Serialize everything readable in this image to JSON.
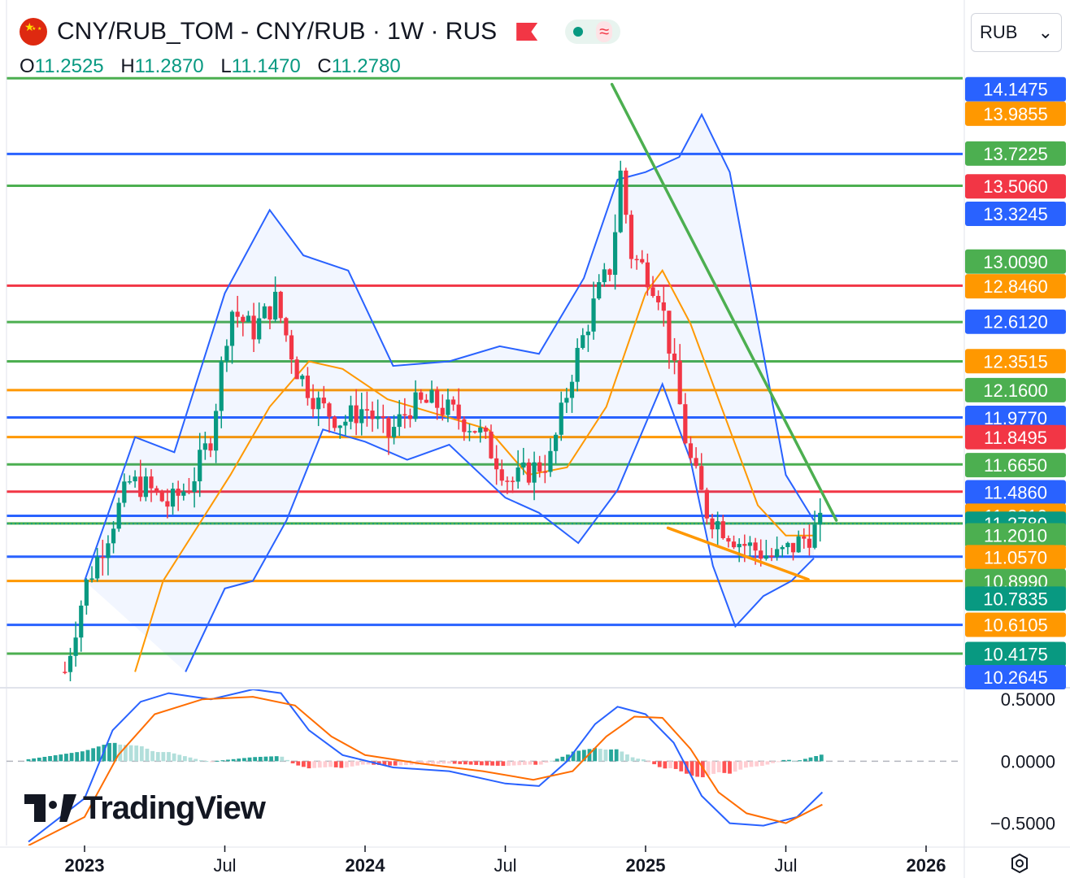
{
  "header": {
    "title": "CNY/RUB_TOM - CNY/RUB · 1W · RUS",
    "ohlc": [
      {
        "key": "O",
        "value": "11.2525"
      },
      {
        "key": "H",
        "value": "11.2870"
      },
      {
        "key": "L",
        "value": "11.1470"
      },
      {
        "key": "C",
        "value": "11.2780"
      }
    ],
    "currency": "RUB",
    "dropdown_glyph": "⌄",
    "icons": [
      "china-flag-icon",
      "flag-marker-icon",
      "status-dot-icon",
      "wave-icon",
      "settings-icon"
    ]
  },
  "branding": {
    "logo_text": "TradingView"
  },
  "chart_data": [
    {
      "type": "candlestick",
      "interval": "1W",
      "ylim": [
        10.2,
        14.35
      ],
      "x_labels": [
        {
          "label": "2023",
          "bold": true,
          "t": 2023.0
        },
        {
          "label": "Jul",
          "bold": false,
          "t": 2023.5
        },
        {
          "label": "2024",
          "bold": true,
          "t": 2024.0
        },
        {
          "label": "Jul",
          "bold": false,
          "t": 2024.5
        },
        {
          "label": "2025",
          "bold": true,
          "t": 2025.0
        },
        {
          "label": "Jul",
          "bold": false,
          "t": 2025.5
        },
        {
          "label": "2026",
          "bold": true,
          "t": 2026.0
        }
      ],
      "price_levels": [
        {
          "label": "14.1475",
          "value": 14.1475,
          "color": "#2962ff",
          "line": false
        },
        {
          "label": "13.9855",
          "value": 13.9855,
          "color": "#ff9800",
          "line": true
        },
        {
          "label": "13.7225",
          "value": 13.7225,
          "color": "#4caf50",
          "line": true
        },
        {
          "label": "13.5060",
          "value": 13.506,
          "color": "#f23645",
          "line": false
        },
        {
          "label": "13.3245",
          "value": 13.3245,
          "color": "#2962ff",
          "line": true
        },
        {
          "label": "13.0090",
          "value": 13.009,
          "color": "#4caf50",
          "line": true
        },
        {
          "label": "12.8460",
          "value": 12.846,
          "color": "#ff9800",
          "line": true
        },
        {
          "label": "12.6120",
          "value": 12.612,
          "color": "#2962ff",
          "line": true
        },
        {
          "label": "12.3515",
          "value": 12.3515,
          "color": "#ff9800",
          "line": true
        },
        {
          "label": "12.1600",
          "value": 12.16,
          "color": "#4caf50",
          "line": true
        },
        {
          "label": "11.9770",
          "value": 11.977,
          "color": "#2962ff",
          "line": true
        },
        {
          "label": "11.8495",
          "value": 11.8495,
          "color": "#f23645",
          "line": true
        },
        {
          "label": "11.6650",
          "value": 11.665,
          "color": "#4caf50",
          "line": true
        },
        {
          "label": "11.4860",
          "value": 11.486,
          "color": "#2962ff",
          "line": true
        },
        {
          "label": "11.3310",
          "value": 11.331,
          "color": "#ff9800",
          "line": true
        },
        {
          "label": "11.2780",
          "value": 11.278,
          "color": "#089981",
          "line": false
        },
        {
          "label": "11.2010",
          "value": 11.201,
          "color": "#4caf50",
          "line": true
        },
        {
          "label": "11.0570",
          "value": 11.057,
          "color": "#ff9800",
          "line": true
        },
        {
          "label": "10.8990",
          "value": 10.899,
          "color": "#4caf50",
          "line": true
        },
        {
          "label": "10.7835",
          "value": 10.7835,
          "color": "#089981",
          "line": true
        },
        {
          "label": "10.6105",
          "value": 10.6105,
          "color": "#ff9800",
          "line": true
        },
        {
          "label": "10.4175",
          "value": 10.4175,
          "color": "#089981",
          "line": true
        },
        {
          "label": "10.2645",
          "value": 10.2645,
          "color": "#2962ff",
          "line": false
        }
      ],
      "extra_lines": [
        {
          "value": 14.22,
          "color": "#4caf50"
        },
        {
          "value": 13.72,
          "color": "#2962ff"
        },
        {
          "value": 13.51,
          "color": "#4caf50"
        },
        {
          "value": 12.85,
          "color": "#f23645"
        },
        {
          "value": 12.61,
          "color": "#4caf50"
        },
        {
          "value": 12.35,
          "color": "#4caf50"
        },
        {
          "value": 12.16,
          "color": "#ff9800"
        },
        {
          "value": 11.98,
          "color": "#2962ff"
        },
        {
          "value": 11.85,
          "color": "#ff9800"
        },
        {
          "value": 11.67,
          "color": "#4caf50"
        },
        {
          "value": 11.49,
          "color": "#f23645"
        },
        {
          "value": 11.33,
          "color": "#2962ff"
        },
        {
          "value": 11.28,
          "color": "#4caf50"
        },
        {
          "value": 11.06,
          "color": "#2962ff"
        },
        {
          "value": 10.9,
          "color": "#ff9800"
        },
        {
          "value": 10.61,
          "color": "#2962ff"
        },
        {
          "value": 10.42,
          "color": "#4caf50"
        }
      ],
      "current_price": 11.278,
      "price_path": [
        [
          2022.93,
          10.3
        ],
        [
          2023.0,
          10.85
        ],
        [
          2023.08,
          11.2
        ],
        [
          2023.16,
          11.55
        ],
        [
          2023.22,
          11.52
        ],
        [
          2023.3,
          11.4
        ],
        [
          2023.38,
          11.55
        ],
        [
          2023.45,
          11.85
        ],
        [
          2023.52,
          12.7
        ],
        [
          2023.6,
          12.55
        ],
        [
          2023.68,
          12.75
        ],
        [
          2023.76,
          12.28
        ],
        [
          2023.84,
          12.05
        ],
        [
          2023.92,
          11.95
        ],
        [
          2024.0,
          12.05
        ],
        [
          2024.08,
          11.85
        ],
        [
          2024.16,
          12.05
        ],
        [
          2024.24,
          12.08
        ],
        [
          2024.32,
          12.0
        ],
        [
          2024.4,
          11.9
        ],
        [
          2024.47,
          11.7
        ],
        [
          2024.52,
          11.55
        ],
        [
          2024.58,
          11.62
        ],
        [
          2024.66,
          11.7
        ],
        [
          2024.74,
          12.3
        ],
        [
          2024.82,
          12.75
        ],
        [
          2024.88,
          13.0
        ],
        [
          2024.91,
          13.6
        ],
        [
          2024.95,
          13.05
        ],
        [
          2025.0,
          12.95
        ],
        [
          2025.05,
          12.8
        ],
        [
          2025.1,
          12.3
        ],
        [
          2025.15,
          11.75
        ],
        [
          2025.22,
          11.35
        ],
        [
          2025.28,
          11.25
        ],
        [
          2025.34,
          11.15
        ],
        [
          2025.4,
          11.1
        ],
        [
          2025.46,
          11.05
        ],
        [
          2025.52,
          11.12
        ],
        [
          2025.58,
          11.2
        ],
        [
          2025.63,
          11.278
        ]
      ],
      "bb_upper": [
        [
          2023.0,
          10.9
        ],
        [
          2023.18,
          11.85
        ],
        [
          2023.32,
          11.75
        ],
        [
          2023.5,
          12.8
        ],
        [
          2023.66,
          13.35
        ],
        [
          2023.78,
          13.05
        ],
        [
          2023.94,
          12.95
        ],
        [
          2024.1,
          12.32
        ],
        [
          2024.3,
          12.35
        ],
        [
          2024.48,
          12.45
        ],
        [
          2024.62,
          12.4
        ],
        [
          2024.78,
          12.9
        ],
        [
          2024.9,
          13.55
        ],
        [
          2025.0,
          13.6
        ],
        [
          2025.12,
          13.7
        ],
        [
          2025.2,
          13.98
        ],
        [
          2025.3,
          13.6
        ],
        [
          2025.42,
          12.4
        ],
        [
          2025.5,
          11.6
        ],
        [
          2025.6,
          11.3
        ]
      ],
      "bb_lower": [
        [
          2023.36,
          10.3
        ],
        [
          2023.5,
          10.85
        ],
        [
          2023.6,
          10.9
        ],
        [
          2023.72,
          11.3
        ],
        [
          2023.85,
          11.9
        ],
        [
          2024.0,
          11.82
        ],
        [
          2024.15,
          11.7
        ],
        [
          2024.3,
          11.8
        ],
        [
          2024.5,
          11.45
        ],
        [
          2024.62,
          11.35
        ],
        [
          2024.76,
          11.15
        ],
        [
          2024.9,
          11.5
        ],
        [
          2025.06,
          12.2
        ],
        [
          2025.16,
          11.7
        ],
        [
          2025.24,
          11.0
        ],
        [
          2025.32,
          10.6
        ],
        [
          2025.42,
          10.8
        ],
        [
          2025.52,
          10.9
        ],
        [
          2025.6,
          11.05
        ]
      ],
      "ma": [
        [
          2023.18,
          10.3
        ],
        [
          2023.28,
          10.9
        ],
        [
          2023.4,
          11.25
        ],
        [
          2023.52,
          11.6
        ],
        [
          2023.66,
          12.05
        ],
        [
          2023.8,
          12.35
        ],
        [
          2023.92,
          12.3
        ],
        [
          2024.08,
          12.1
        ],
        [
          2024.26,
          12.0
        ],
        [
          2024.44,
          11.9
        ],
        [
          2024.58,
          11.6
        ],
        [
          2024.72,
          11.65
        ],
        [
          2024.86,
          12.05
        ],
        [
          2025.0,
          12.8
        ],
        [
          2025.06,
          12.95
        ],
        [
          2025.16,
          12.6
        ],
        [
          2025.28,
          12.0
        ],
        [
          2025.4,
          11.4
        ],
        [
          2025.5,
          11.2
        ],
        [
          2025.6,
          11.2
        ]
      ],
      "trendlines": [
        {
          "color": "#4caf50",
          "from": [
            2024.88,
            14.18
          ],
          "to": [
            2025.68,
            11.3
          ]
        },
        {
          "color": "#ff9800",
          "from": [
            2025.08,
            11.25
          ],
          "to": [
            2025.58,
            10.91
          ]
        }
      ]
    },
    {
      "type": "macd",
      "y_ticks": [
        {
          "label": "0.5000",
          "value": 0.5
        },
        {
          "label": "0.0000",
          "value": 0.0
        },
        {
          "label": "−0.5000",
          "value": -0.5
        }
      ],
      "ylim": [
        -0.68,
        0.58
      ],
      "macd_line": [
        [
          2022.8,
          -0.65
        ],
        [
          2023.0,
          -0.3
        ],
        [
          2023.1,
          0.25
        ],
        [
          2023.2,
          0.48
        ],
        [
          2023.3,
          0.55
        ],
        [
          2023.45,
          0.5
        ],
        [
          2023.6,
          0.58
        ],
        [
          2023.7,
          0.55
        ],
        [
          2023.8,
          0.25
        ],
        [
          2023.92,
          0.05
        ],
        [
          2024.1,
          -0.05
        ],
        [
          2024.3,
          -0.08
        ],
        [
          2024.5,
          -0.18
        ],
        [
          2024.62,
          -0.2
        ],
        [
          2024.72,
          0.0
        ],
        [
          2024.82,
          0.3
        ],
        [
          2024.9,
          0.44
        ],
        [
          2025.0,
          0.38
        ],
        [
          2025.1,
          0.15
        ],
        [
          2025.2,
          -0.28
        ],
        [
          2025.3,
          -0.5
        ],
        [
          2025.42,
          -0.52
        ],
        [
          2025.54,
          -0.45
        ],
        [
          2025.63,
          -0.25
        ]
      ],
      "signal_line": [
        [
          2022.8,
          -0.68
        ],
        [
          2023.0,
          -0.45
        ],
        [
          2023.12,
          0.05
        ],
        [
          2023.25,
          0.38
        ],
        [
          2023.42,
          0.5
        ],
        [
          2023.6,
          0.52
        ],
        [
          2023.75,
          0.45
        ],
        [
          2023.88,
          0.2
        ],
        [
          2024.0,
          0.05
        ],
        [
          2024.2,
          -0.02
        ],
        [
          2024.42,
          -0.08
        ],
        [
          2024.6,
          -0.15
        ],
        [
          2024.74,
          -0.08
        ],
        [
          2024.86,
          0.2
        ],
        [
          2024.96,
          0.36
        ],
        [
          2025.06,
          0.35
        ],
        [
          2025.16,
          0.1
        ],
        [
          2025.26,
          -0.25
        ],
        [
          2025.36,
          -0.42
        ],
        [
          2025.5,
          -0.5
        ],
        [
          2025.63,
          -0.35
        ]
      ]
    }
  ]
}
